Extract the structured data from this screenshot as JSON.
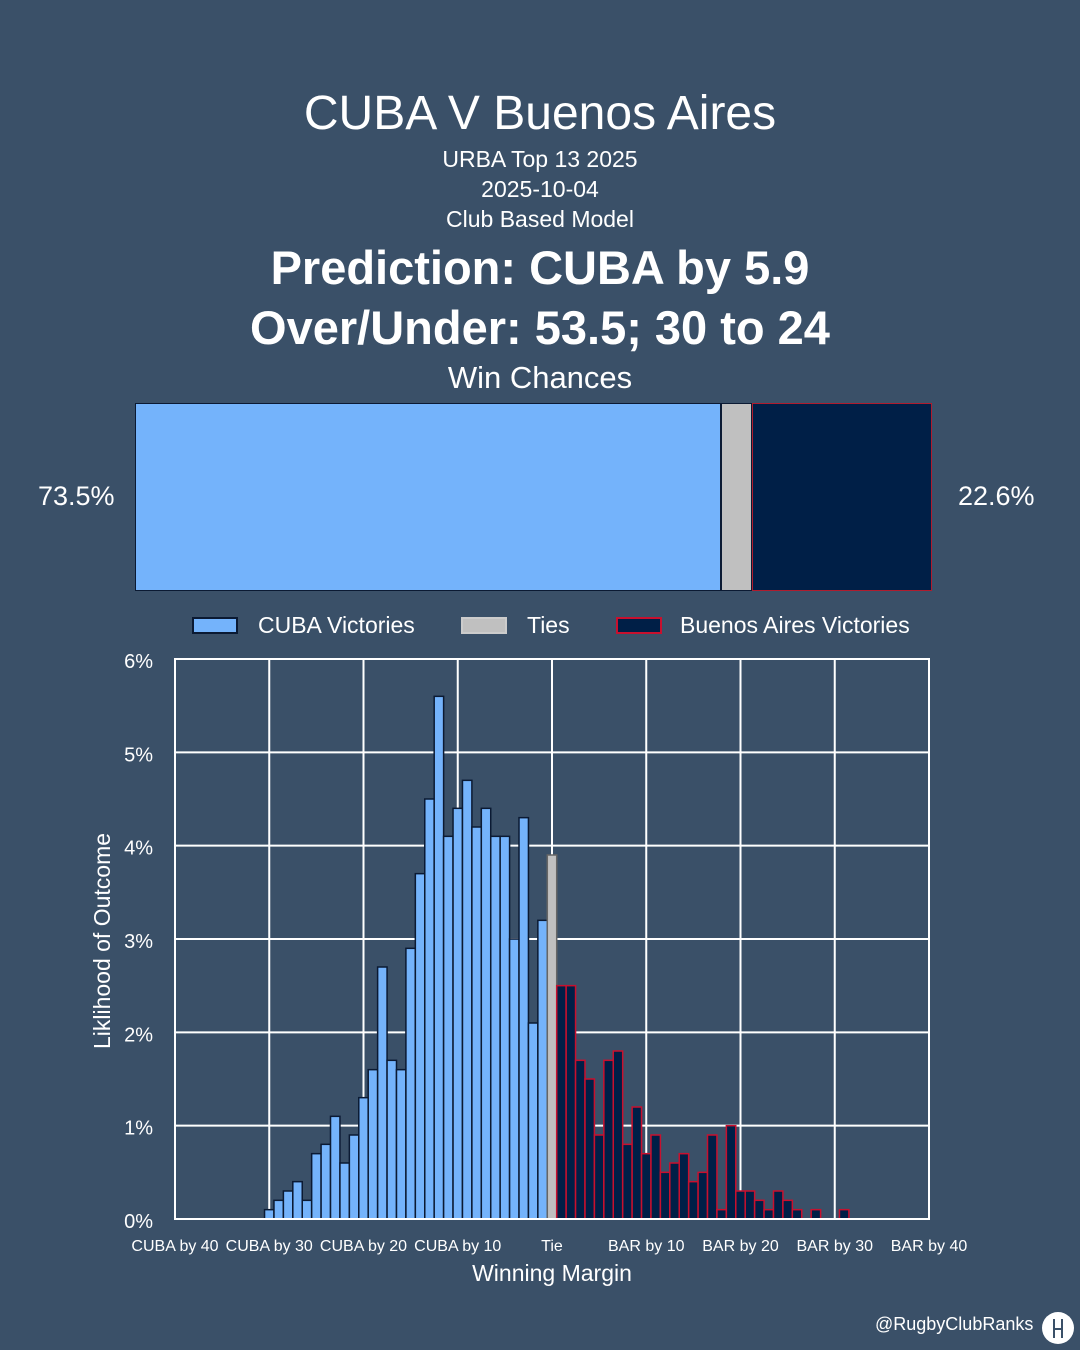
{
  "header": {
    "title": "CUBA V Buenos Aires",
    "competition": "URBA Top 13 2025",
    "date": "2025-10-04",
    "model": "Club Based Model",
    "prediction": "Prediction: CUBA by 5.9",
    "over_under": "Over/Under: 53.5; 30 to 24",
    "win_chances_label": "Win Chances"
  },
  "win_chances": {
    "home_pct": 73.5,
    "tie_pct": 3.9,
    "away_pct": 22.6,
    "home_label": "73.5%",
    "away_label": "22.6%"
  },
  "legend": {
    "home": "CUBA Victories",
    "tie": "Ties",
    "away": "Buenos Aires Victories"
  },
  "colors": {
    "background": "#3a5068",
    "home": "#74b3fb",
    "tie": "#c0c0c0",
    "away": "#001f47",
    "away_edge": "#c8102e"
  },
  "chart_data": {
    "type": "bar",
    "title": "",
    "xlabel": "Winning Margin",
    "ylabel": "Liklihood of Outcome",
    "xlim": [
      -40,
      40
    ],
    "ylim": [
      0,
      6
    ],
    "yticks": [
      0,
      1,
      2,
      3,
      4,
      5,
      6
    ],
    "ytick_labels": [
      "0%",
      "1%",
      "2%",
      "3%",
      "4%",
      "5%",
      "6%"
    ],
    "xticks": [
      -40,
      -30,
      -20,
      -10,
      0,
      10,
      20,
      30,
      40
    ],
    "xtick_labels": [
      "CUBA by 40",
      "CUBA by 30",
      "CUBA by 20",
      "CUBA by 10",
      "Tie",
      "BAR by 10",
      "BAR by 20",
      "BAR by 30",
      "BAR by 40"
    ],
    "grid": true,
    "series": [
      {
        "name": "CUBA Victories",
        "x": [
          -30,
          -29,
          -28,
          -27,
          -26,
          -25,
          -24,
          -23,
          -22,
          -21,
          -20,
          -19,
          -18,
          -17,
          -16,
          -15,
          -14,
          -13,
          -12,
          -11,
          -10,
          -9,
          -8,
          -7,
          -6,
          -5,
          -4,
          -3,
          -2,
          -1
        ],
        "values": [
          0.1,
          0.2,
          0.3,
          0.4,
          0.2,
          0.7,
          0.8,
          1.1,
          0.6,
          0.9,
          1.3,
          1.6,
          2.7,
          1.7,
          1.6,
          2.9,
          3.7,
          4.5,
          5.6,
          4.1,
          4.4,
          4.7,
          4.2,
          4.4,
          4.1,
          4.1,
          3.0,
          4.3,
          2.1,
          3.2
        ]
      },
      {
        "name": "Ties",
        "x": [
          0
        ],
        "values": [
          3.9
        ]
      },
      {
        "name": "Buenos Aires Victories",
        "x": [
          1,
          2,
          3,
          4,
          5,
          6,
          7,
          8,
          9,
          10,
          11,
          12,
          13,
          14,
          15,
          16,
          17,
          18,
          19,
          20,
          21,
          22,
          23,
          24,
          25,
          26,
          27,
          28,
          29,
          30,
          31,
          32
        ],
        "values": [
          2.5,
          2.5,
          1.7,
          1.5,
          0.9,
          1.7,
          1.8,
          0.8,
          1.2,
          0.7,
          0.9,
          0.5,
          0.6,
          0.7,
          0.4,
          0.5,
          0.9,
          0.1,
          1.0,
          0.3,
          0.3,
          0.2,
          0.1,
          0.3,
          0.2,
          0.1,
          0.0,
          0.1,
          0.0,
          0.0,
          0.1,
          0.0
        ]
      }
    ]
  },
  "footer": {
    "credit": "@RugbyClubRanks"
  }
}
